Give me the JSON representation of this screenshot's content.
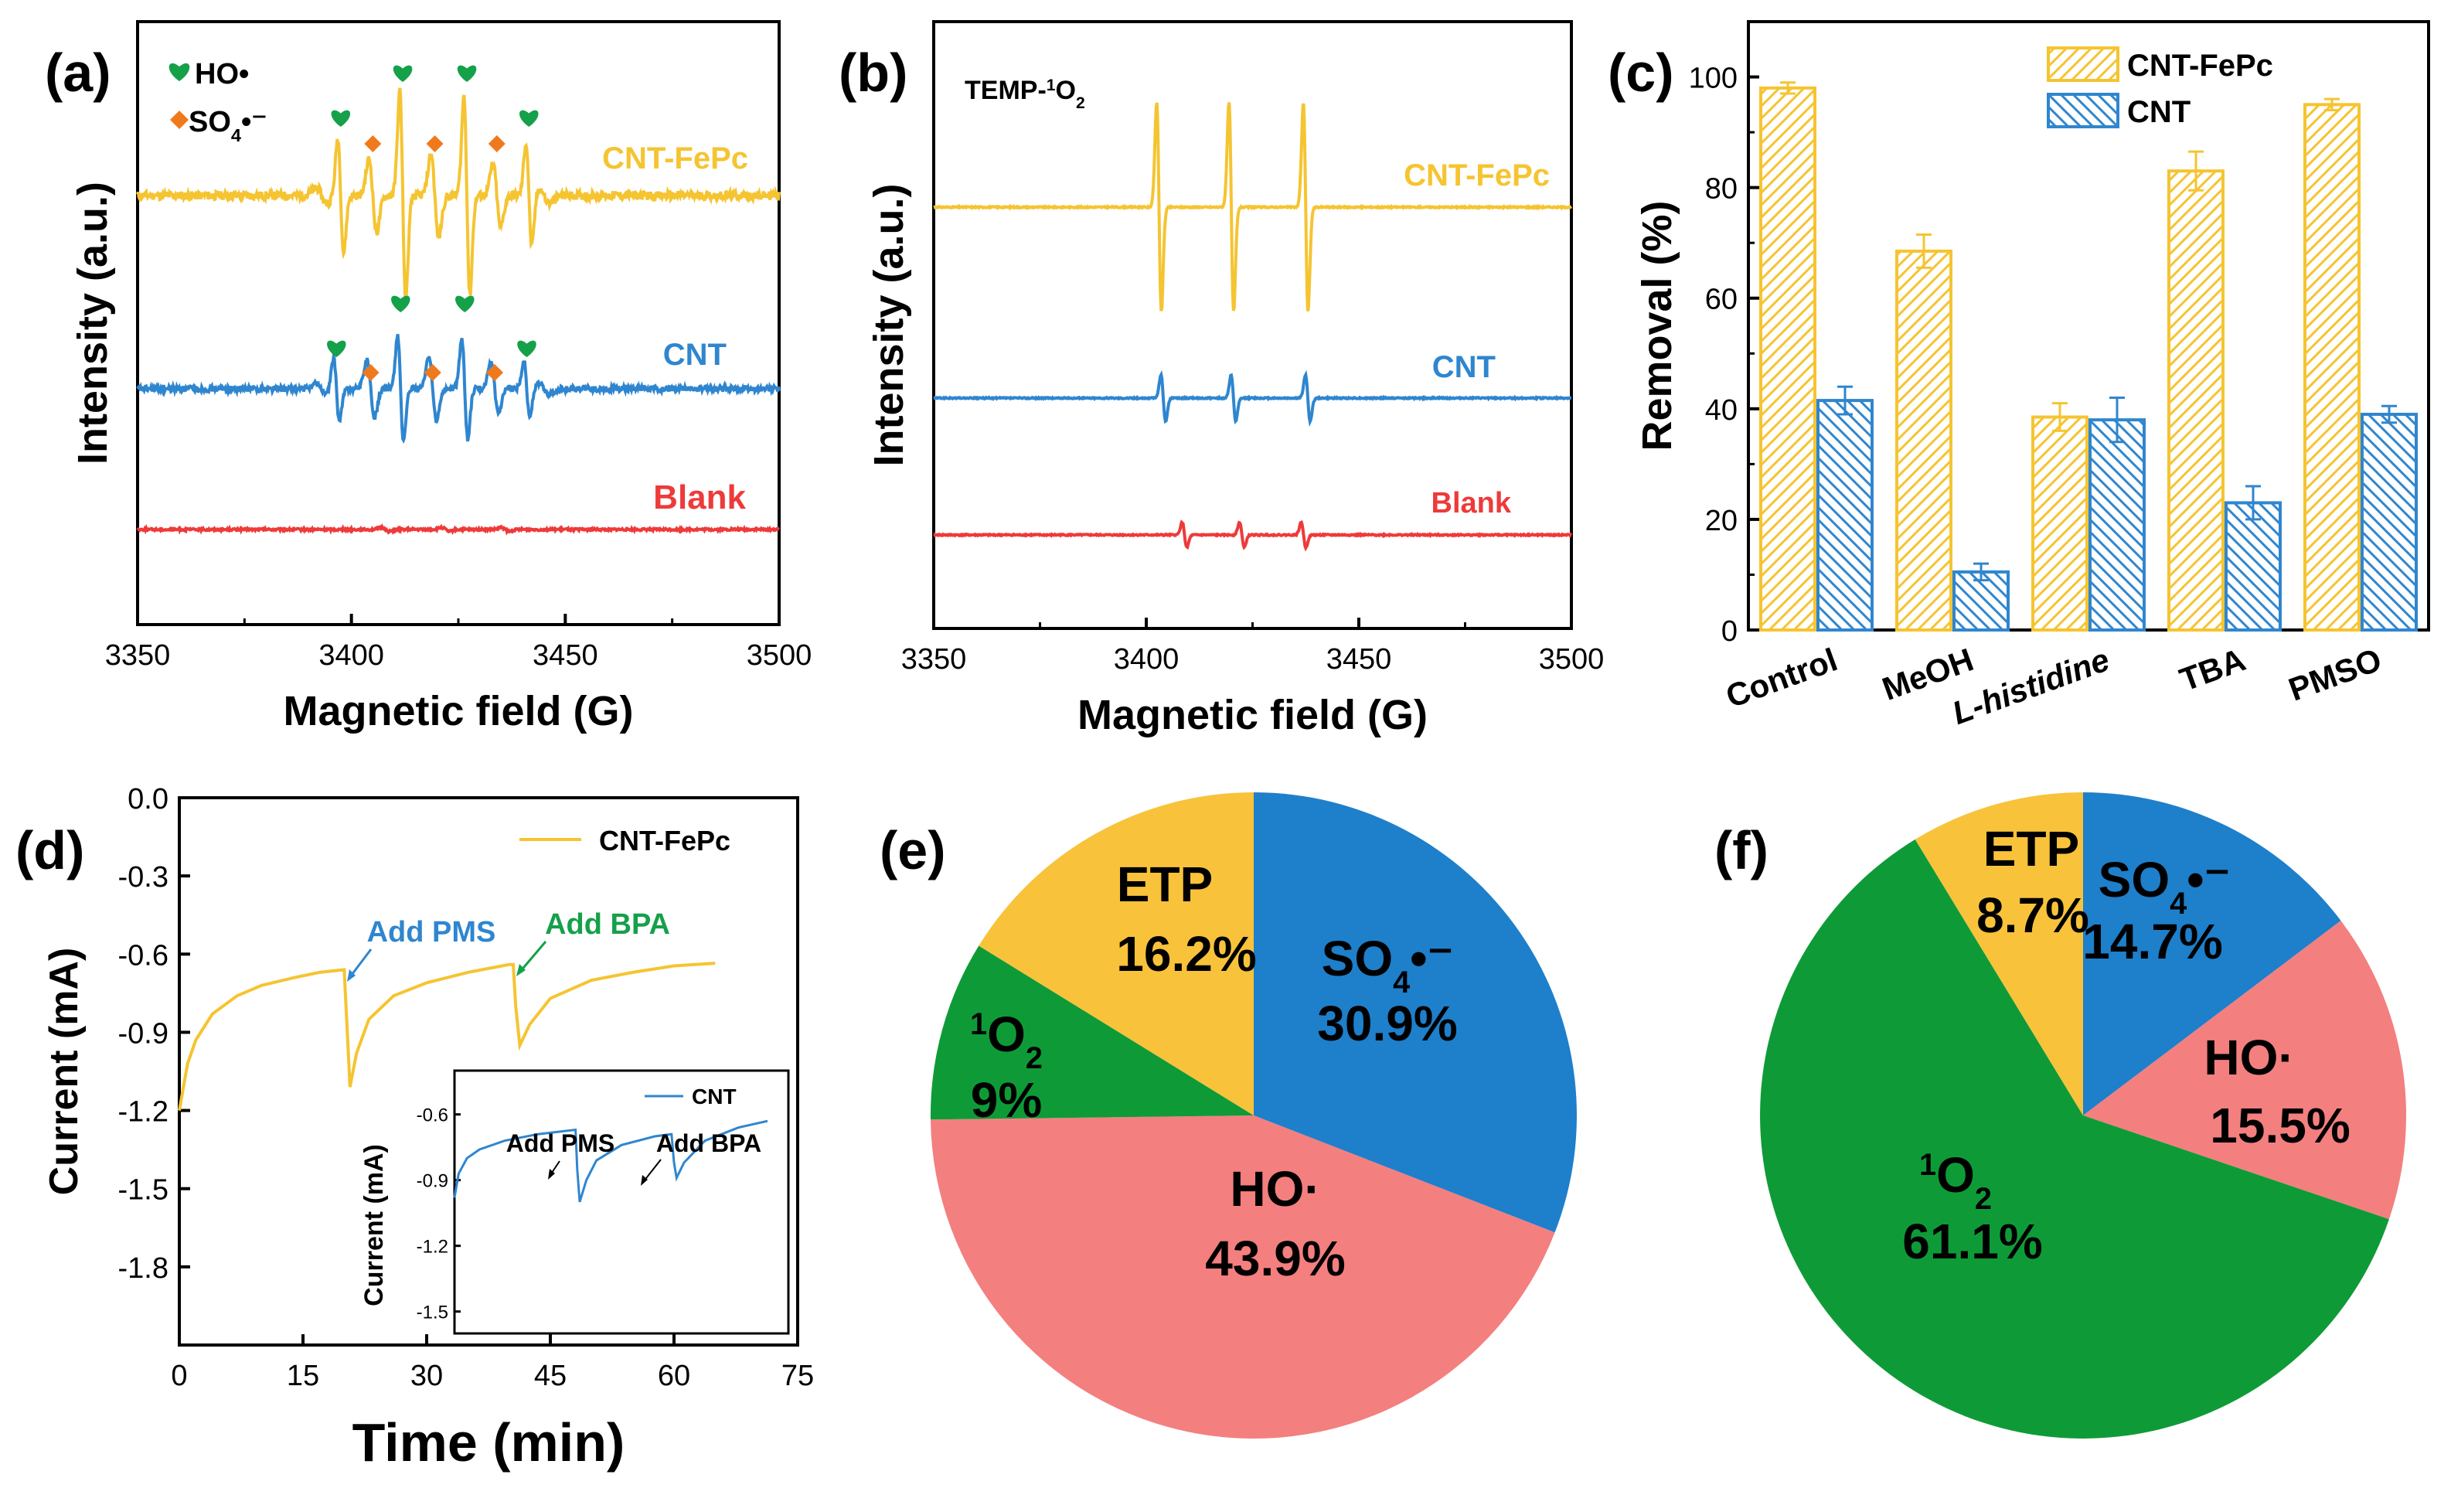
{
  "colors": {
    "fepc": "#F5C431",
    "cnt": "#2F86CF",
    "blank": "#EE3A3A",
    "heart": "#15A04A",
    "diamond": "#EF7A1E",
    "pie_blue": "#1E7FCB",
    "pie_red": "#F47F7F",
    "pie_green": "#0E9B37",
    "pie_yellow": "#F8C23A"
  },
  "chart_data": [
    {
      "panel": "(a)",
      "type": "line",
      "title": "",
      "xlabel": "Magnetic field (G)",
      "ylabel": "Intensity (a.u.)",
      "xlim": [
        3350,
        3500
      ],
      "xticks": [
        "3350",
        "3400",
        "3450",
        "3500"
      ],
      "legend": {
        "heart": "HO•",
        "diamond": "SO4•⁻"
      },
      "series": [
        {
          "name": "CNT-FePc",
          "color_key": "fepc",
          "hydroxyl_peaks_G": [
            3397.5,
            3412,
            3427,
            3441.5
          ],
          "sulfate_peaks_G": [
            3405,
            3419.5,
            3434
          ],
          "hydroxyl_amp": [
            0.55,
            1.0,
            0.95,
            0.5
          ],
          "sulfate_amp": [
            0.35,
            0.4,
            0.3
          ]
        },
        {
          "name": "CNT",
          "color_key": "cnt",
          "hydroxyl_peaks_G": [
            3396.5,
            3411.5,
            3426.5,
            3441
          ],
          "sulfate_peaks_G": [
            3404.5,
            3419,
            3433.5
          ],
          "hydroxyl_amp": [
            0.45,
            0.75,
            0.7,
            0.4
          ],
          "sulfate_amp": [
            0.4,
            0.45,
            0.35
          ]
        },
        {
          "name": "Blank",
          "color_key": "blank",
          "noise_only": true
        }
      ]
    },
    {
      "panel": "(b)",
      "type": "line",
      "title": "TEMP-1O2",
      "xlabel": "Magnetic field (G)",
      "ylabel": "Intensity (a.u.)",
      "xlim": [
        3350,
        3500
      ],
      "xticks": [
        "3350",
        "3400",
        "3450",
        "3500"
      ],
      "series": [
        {
          "name": "CNT-FePc",
          "color_key": "fepc",
          "triplet_G": [
            3403,
            3420,
            3437.5
          ],
          "amp": 1.0
        },
        {
          "name": "CNT",
          "color_key": "cnt",
          "triplet_G": [
            3404,
            3420.5,
            3438
          ],
          "amp": 0.22
        },
        {
          "name": "Blank",
          "color_key": "blank",
          "triplet_G": [
            3409,
            3422.5,
            3437
          ],
          "amp": 0.12
        }
      ]
    },
    {
      "panel": "(c)",
      "type": "bar",
      "ylabel": "Removal (%)",
      "ylim": [
        0,
        110
      ],
      "yticks": [
        "0",
        "20",
        "40",
        "60",
        "80",
        "100"
      ],
      "categories": [
        "Control",
        "MeOH",
        "L-histidine",
        "TBA",
        "PMSO"
      ],
      "series": [
        {
          "name": "CNT-FePc",
          "color_key": "fepc",
          "values": [
            98,
            68.5,
            38.5,
            83,
            95
          ],
          "errors": [
            1,
            3,
            2.5,
            3.5,
            1
          ]
        },
        {
          "name": "CNT",
          "color_key": "cnt",
          "values": [
            41.5,
            10.5,
            38,
            23,
            39
          ],
          "errors": [
            2.5,
            1.5,
            4,
            3,
            1.5
          ]
        }
      ]
    },
    {
      "panel": "(d)",
      "type": "line",
      "xlabel": "Time (min)",
      "ylabel": "Current (mA)",
      "xlim": [
        0,
        75
      ],
      "ylim": [
        -2.1,
        0
      ],
      "xticks": [
        "0",
        "15",
        "30",
        "45",
        "60",
        "75"
      ],
      "yticks": [
        "0.0",
        "-0.3",
        "-0.6",
        "-0.9",
        "-1.2",
        "-1.5",
        "-1.8"
      ],
      "series": [
        {
          "name": "CNT-FePc",
          "color_key": "fepc",
          "points": [
            [
              0,
              -1.2
            ],
            [
              1,
              -1.02
            ],
            [
              2,
              -0.93
            ],
            [
              4,
              -0.83
            ],
            [
              7,
              -0.76
            ],
            [
              10,
              -0.72
            ],
            [
              14,
              -0.69
            ],
            [
              17,
              -0.67
            ],
            [
              20,
              -0.66
            ],
            [
              20.3,
              -0.85
            ],
            [
              20.7,
              -1.11
            ],
            [
              21.5,
              -0.98
            ],
            [
              23,
              -0.85
            ],
            [
              26,
              -0.76
            ],
            [
              30,
              -0.71
            ],
            [
              35,
              -0.67
            ],
            [
              40,
              -0.64
            ],
            [
              40.5,
              -0.64
            ],
            [
              40.8,
              -0.8
            ],
            [
              41.3,
              -0.95
            ],
            [
              42.5,
              -0.87
            ],
            [
              45,
              -0.77
            ],
            [
              50,
              -0.7
            ],
            [
              55,
              -0.67
            ],
            [
              60,
              -0.645
            ],
            [
              65,
              -0.635
            ]
          ]
        }
      ],
      "annotations": [
        {
          "text": "Add PMS",
          "at_min": 20.5,
          "color_key": "cnt"
        },
        {
          "text": "Add BPA",
          "at_min": 41,
          "color_key": "heart"
        }
      ],
      "inset": {
        "xlim": [
          30,
          70
        ],
        "ylim": [
          -1.6,
          -0.4
        ],
        "ylabel": "Current (mA)",
        "yticks": [
          "-0.6",
          "-0.9",
          "-1.2",
          "-1.5"
        ],
        "series": [
          {
            "name": "CNT",
            "color_key": "cnt",
            "points": [
              [
                30,
                -0.98
              ],
              [
                30.5,
                -0.87
              ],
              [
                31.5,
                -0.8
              ],
              [
                33,
                -0.76
              ],
              [
                36,
                -0.72
              ],
              [
                40,
                -0.69
              ],
              [
                44.5,
                -0.67
              ],
              [
                44.7,
                -0.85
              ],
              [
                45,
                -1.0
              ],
              [
                45.8,
                -0.9
              ],
              [
                47,
                -0.81
              ],
              [
                50,
                -0.74
              ],
              [
                54,
                -0.7
              ],
              [
                56,
                -0.69
              ],
              [
                56.3,
                -0.82
              ],
              [
                56.6,
                -0.89
              ],
              [
                57.5,
                -0.82
              ],
              [
                60,
                -0.72
              ],
              [
                64,
                -0.66
              ],
              [
                67.5,
                -0.63
              ]
            ]
          }
        ],
        "annotations": [
          {
            "text": "Add PMS",
            "at_min": 44.7
          },
          {
            "text": "Add BPA",
            "at_min": 56.3
          }
        ]
      }
    },
    {
      "panel": "(e)",
      "type": "pie",
      "slices": [
        {
          "label": "SO4•⁻",
          "value": 30.9,
          "pct": "30.9%",
          "color_key": "pie_blue"
        },
        {
          "label": "HO·",
          "value": 43.9,
          "pct": "43.9%",
          "color_key": "pie_red"
        },
        {
          "label": "1O2",
          "value": 9,
          "pct": "9%",
          "color_key": "pie_green"
        },
        {
          "label": "ETP",
          "value": 16.2,
          "pct": "16.2%",
          "color_key": "pie_yellow"
        }
      ]
    },
    {
      "panel": "(f)",
      "type": "pie",
      "slices": [
        {
          "label": "SO4•⁻",
          "value": 14.7,
          "pct": "14.7%",
          "color_key": "pie_blue"
        },
        {
          "label": "HO·",
          "value": 15.5,
          "pct": "15.5%",
          "color_key": "pie_red"
        },
        {
          "label": "1O2",
          "value": 61.1,
          "pct": "61.1%",
          "color_key": "pie_green"
        },
        {
          "label": "ETP",
          "value": 8.7,
          "pct": "8.7%",
          "color_key": "pie_yellow"
        }
      ]
    }
  ]
}
